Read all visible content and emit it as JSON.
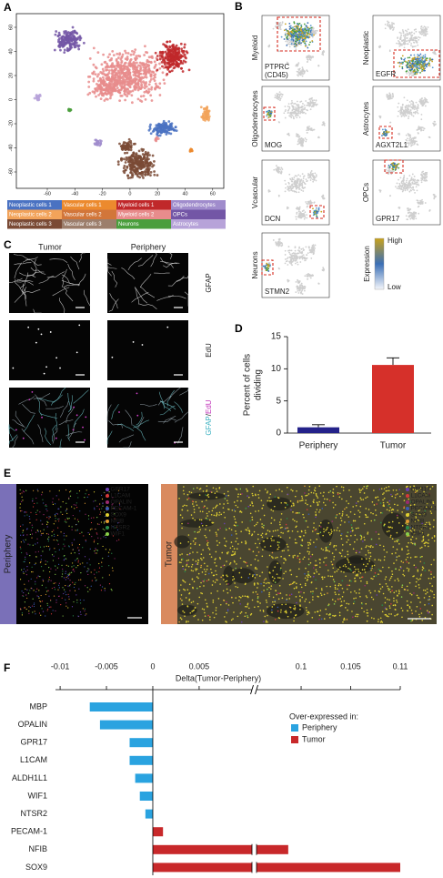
{
  "panels": {
    "a": {
      "letter": "A",
      "x_ticks": [
        -60,
        -40,
        -20,
        0,
        20,
        40,
        60
      ],
      "y_ticks": [
        60,
        40,
        20,
        0,
        -20,
        -40,
        -60
      ],
      "legend": [
        {
          "label": "Neoplastic cells 1",
          "color": "#4a72c2"
        },
        {
          "label": "Vascular cells 1",
          "color": "#ec8a2e"
        },
        {
          "label": "Myeloid cells 1",
          "color": "#c0282a"
        },
        {
          "label": "Oligodendrocytes",
          "color": "#a08ccc"
        },
        {
          "label": "Neoplastic cells 2",
          "color": "#f2a35a"
        },
        {
          "label": "Vascular cells 2",
          "color": "#d2763a"
        },
        {
          "label": "Myeloid cells 2",
          "color": "#e88c8c"
        },
        {
          "label": "OPCs",
          "color": "#7356a6"
        },
        {
          "label": "Neoplastic cells 3",
          "color": "#7a4a35"
        },
        {
          "label": "Vascular cells 3",
          "color": "#9c7e6c"
        },
        {
          "label": "Neurons",
          "color": "#4a9e3c"
        },
        {
          "label": "Astrocytes",
          "color": "#b7a3d9"
        }
      ]
    },
    "b": {
      "letter": "B",
      "plots": [
        {
          "cell_type": "Myeloid",
          "gene": "PTPRC",
          "gene_note": "(CD45)"
        },
        {
          "cell_type": "Neoplastic",
          "gene": "EGFR"
        },
        {
          "cell_type": "Oligodendrocytes",
          "gene": "MOG"
        },
        {
          "cell_type": "Astrocytes",
          "gene": "AGXT2L1"
        },
        {
          "cell_type": "Vcascular",
          "gene": "DCN"
        },
        {
          "cell_type": "OPCs",
          "gene": "GPR17"
        },
        {
          "cell_type": "Neurons",
          "gene": "STMN2"
        }
      ],
      "colorbar": {
        "title": "Expression",
        "high": "High",
        "low": "Low"
      }
    },
    "c": {
      "letter": "C",
      "columns": [
        "Tumor",
        "Periphery"
      ],
      "rows": [
        "GFAP",
        "EdU"
      ],
      "merge": [
        "GFAP",
        "/",
        "EdU"
      ]
    },
    "d": {
      "letter": "D"
    },
    "e": {
      "letter": "E",
      "samples": [
        "Periphery",
        "Tumor"
      ],
      "genes": [
        {
          "name": "GPR17",
          "color": "#6a3fb0"
        },
        {
          "name": "L1CAM",
          "color": "#d43a3a"
        },
        {
          "name": "OPALIN",
          "color": "#9a2a70"
        },
        {
          "name": "PECAM-1",
          "color": "#3a5ab0"
        },
        {
          "name": "SOX9",
          "color": "#e0d030"
        },
        {
          "name": "NFIB",
          "color": "#e09a30"
        },
        {
          "name": "NTSR2",
          "color": "#2a8a4a"
        },
        {
          "name": "WIF1",
          "color": "#8ad04a"
        }
      ]
    },
    "f": {
      "letter": "F"
    }
  },
  "chart_data": [
    {
      "type": "bar",
      "ylabel": [
        "Percent of cells",
        "dividing"
      ],
      "categories": [
        "Periphery",
        "Tumor"
      ],
      "values": [
        0.9,
        10.6
      ],
      "errors": [
        0.4,
        1.1
      ],
      "colors": [
        "#24228a",
        "#d6302a"
      ],
      "ylim": [
        0,
        15
      ],
      "yticks": [
        0,
        5,
        10,
        15
      ]
    },
    {
      "type": "hbar",
      "title": "Delta(Tumor-Periphery)",
      "categories": [
        "MBP",
        "OPALIN",
        "GPR17",
        "L1CAM",
        "ALDH1L1",
        "WIF1",
        "NTSR2",
        "PECAM-1",
        "NFIB",
        "SOX9"
      ],
      "values": [
        -0.0068,
        -0.0057,
        -0.0025,
        -0.0025,
        -0.0019,
        -0.0014,
        -0.0008,
        0.0011,
        0.0987,
        0.11
      ],
      "xlim": [
        -0.0105,
        0.11
      ],
      "xbreak": [
        0.0107,
        0.0955
      ],
      "xticks": [
        -0.01,
        -0.005,
        0,
        0.005,
        0.1,
        0.105,
        0.11
      ],
      "legend_title": "Over-expressed in:",
      "legend": [
        {
          "name": "Periphery",
          "color": "#2aa3e0"
        },
        {
          "name": "Tumor",
          "color": "#c8282a"
        }
      ]
    }
  ]
}
